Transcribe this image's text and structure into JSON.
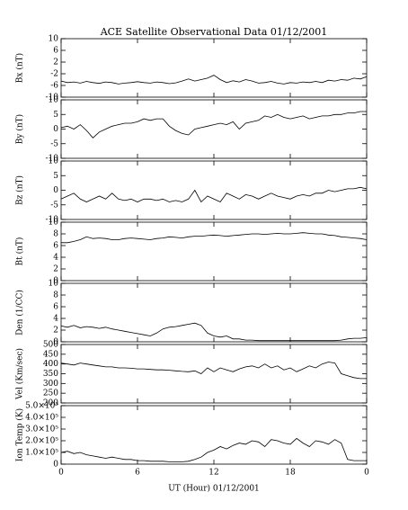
{
  "chart_data": [
    {
      "type": "line",
      "title": "ACE Satellite Observational Data   01/12/2001",
      "ylabel": "Bx (nT)",
      "ylim": [
        -10,
        10
      ],
      "yticks": [
        -10,
        -6,
        -2,
        2,
        6,
        10
      ],
      "xlim": [
        0,
        24
      ],
      "color": "#000000",
      "x": [
        0,
        0.5,
        1,
        1.5,
        2,
        2.5,
        3,
        3.5,
        4,
        4.5,
        5,
        5.5,
        6,
        6.5,
        7,
        7.5,
        8,
        8.5,
        9,
        9.5,
        10,
        10.5,
        11,
        11.5,
        12,
        12.5,
        13,
        13.5,
        14,
        14.5,
        15,
        15.5,
        16,
        16.5,
        17,
        17.5,
        18,
        18.5,
        19,
        19.5,
        20,
        20.5,
        21,
        21.5,
        22,
        22.5,
        23,
        23.5,
        24
      ],
      "values": [
        -4.5,
        -5,
        -4.8,
        -5.2,
        -4.6,
        -5,
        -5.3,
        -4.8,
        -5,
        -5.5,
        -5.2,
        -5,
        -4.7,
        -5,
        -5.2,
        -4.8,
        -5,
        -5.4,
        -5.1,
        -4.5,
        -3.8,
        -4.5,
        -4,
        -3.5,
        -2.5,
        -4,
        -5,
        -4.4,
        -4.8,
        -4,
        -4.5,
        -5.2,
        -5,
        -4.6,
        -5.2,
        -5.5,
        -5,
        -5.2,
        -4.8,
        -5,
        -4.6,
        -5,
        -4.2,
        -4.5,
        -4,
        -4.2,
        -3.5,
        -3.8,
        -3
      ]
    },
    {
      "type": "line",
      "ylabel": "By (nT)",
      "ylim": [
        -10,
        10
      ],
      "yticks": [
        -10,
        -5,
        0,
        5,
        10
      ],
      "xlim": [
        0,
        24
      ],
      "color": "#000000",
      "x": [
        0,
        0.5,
        1,
        1.5,
        2,
        2.5,
        3,
        3.5,
        4,
        4.5,
        5,
        5.5,
        6,
        6.5,
        7,
        7.5,
        8,
        8.5,
        9,
        9.5,
        10,
        10.5,
        11,
        11.5,
        12,
        12.5,
        13,
        13.5,
        14,
        14.5,
        15,
        15.5,
        16,
        16.5,
        17,
        17.5,
        18,
        18.5,
        19,
        19.5,
        20,
        20.5,
        21,
        21.5,
        22,
        22.5,
        23,
        23.5,
        24
      ],
      "values": [
        0.5,
        1,
        0,
        1.5,
        -0.5,
        -3,
        -1,
        0,
        1,
        1.5,
        2,
        2,
        2.5,
        3.5,
        3,
        3.5,
        3.5,
        1,
        -0.5,
        -1.5,
        -2,
        0,
        0.5,
        1,
        1.5,
        2,
        1.5,
        2.5,
        0,
        2,
        2.5,
        3,
        4.5,
        4,
        5,
        4,
        3.5,
        4,
        4.5,
        3.5,
        4,
        4.5,
        4.5,
        5,
        5,
        5.5,
        5.5,
        6,
        6
      ]
    },
    {
      "type": "line",
      "ylabel": "Bz (nT)",
      "ylim": [
        -10,
        10
      ],
      "yticks": [
        -10,
        -5,
        0,
        5,
        10
      ],
      "xlim": [
        0,
        24
      ],
      "color": "#000000",
      "x": [
        0,
        0.5,
        1,
        1.5,
        2,
        2.5,
        3,
        3.5,
        4,
        4.5,
        5,
        5.5,
        6,
        6.5,
        7,
        7.5,
        8,
        8.5,
        9,
        9.5,
        10,
        10.5,
        11,
        11.5,
        12,
        12.5,
        13,
        13.5,
        14,
        14.5,
        15,
        15.5,
        16,
        16.5,
        17,
        17.5,
        18,
        18.5,
        19,
        19.5,
        20,
        20.5,
        21,
        21.5,
        22,
        22.5,
        23,
        23.5,
        24
      ],
      "values": [
        -3,
        -2,
        -1,
        -3,
        -4,
        -3,
        -2,
        -3,
        -1,
        -3,
        -3.5,
        -3,
        -4,
        -3,
        -3,
        -3.5,
        -3,
        -4,
        -3.5,
        -4,
        -3,
        0,
        -4,
        -2,
        -3,
        -4,
        -1,
        -2,
        -3,
        -1.5,
        -2,
        -3,
        -2,
        -1,
        -2,
        -2.5,
        -3,
        -2,
        -1.5,
        -2,
        -1,
        -1,
        0,
        -0.5,
        0,
        0.5,
        0.5,
        1,
        0.5
      ]
    },
    {
      "type": "line",
      "ylabel": "Bt (nT)",
      "ylim": [
        0,
        10
      ],
      "yticks": [
        0,
        2,
        4,
        6,
        8,
        10
      ],
      "xlim": [
        0,
        24
      ],
      "color": "#000000",
      "x": [
        0,
        0.5,
        1,
        1.5,
        2,
        2.5,
        3,
        3.5,
        4,
        4.5,
        5,
        5.5,
        6,
        6.5,
        7,
        7.5,
        8,
        8.5,
        9,
        9.5,
        10,
        10.5,
        11,
        11.5,
        12,
        12.5,
        13,
        13.5,
        14,
        14.5,
        15,
        15.5,
        16,
        16.5,
        17,
        17.5,
        18,
        18.5,
        19,
        19.5,
        20,
        20.5,
        21,
        21.5,
        22,
        22.5,
        23,
        23.5,
        24
      ],
      "values": [
        6.5,
        6.5,
        6.7,
        7,
        7.5,
        7.2,
        7.3,
        7.2,
        7,
        7,
        7.2,
        7.3,
        7.2,
        7.1,
        7,
        7.2,
        7.3,
        7.5,
        7.4,
        7.3,
        7.5,
        7.6,
        7.6,
        7.7,
        7.8,
        7.7,
        7.6,
        7.7,
        7.8,
        7.9,
        8,
        8,
        7.9,
        8,
        8.1,
        8,
        8,
        8.1,
        8.2,
        8.1,
        8,
        8,
        7.8,
        7.7,
        7.5,
        7.4,
        7.3,
        7.2,
        7
      ]
    },
    {
      "type": "line",
      "ylabel": "Den (1/CC)",
      "ylim": [
        0,
        10
      ],
      "yticks": [
        0,
        2,
        4,
        6,
        8,
        10
      ],
      "xlim": [
        0,
        24
      ],
      "color": "#000000",
      "x": [
        0,
        0.5,
        1,
        1.5,
        2,
        2.5,
        3,
        3.5,
        4,
        4.5,
        5,
        5.5,
        6,
        6.5,
        7,
        7.5,
        8,
        8.5,
        9,
        9.5,
        10,
        10.5,
        11,
        11.5,
        12,
        12.5,
        13,
        13.5,
        14,
        14.5,
        15,
        15.5,
        16,
        16.5,
        17,
        17.5,
        18,
        18.5,
        19,
        19.5,
        20,
        20.5,
        21,
        21.5,
        22,
        22.5,
        23,
        23.5,
        24
      ],
      "values": [
        2.7,
        2.5,
        2.8,
        2.4,
        2.6,
        2.5,
        2.3,
        2.5,
        2.2,
        2,
        1.8,
        1.6,
        1.4,
        1.2,
        1,
        1.5,
        2.2,
        2.5,
        2.6,
        2.8,
        3,
        3.2,
        2.8,
        1.5,
        1,
        0.8,
        1,
        0.5,
        0.5,
        0.3,
        0.3,
        0.2,
        0.2,
        0.2,
        0.2,
        0.2,
        0.2,
        0.2,
        0.2,
        0.2,
        0.2,
        0.2,
        0.2,
        0.2,
        0.3,
        0.5,
        0.6,
        0.6,
        0.7
      ]
    },
    {
      "type": "line",
      "ylabel": "Vel (Km/sec)",
      "ylim": [
        200,
        500
      ],
      "yticks": [
        200,
        250,
        300,
        350,
        400,
        450,
        500
      ],
      "xlim": [
        0,
        24
      ],
      "color": "#000000",
      "x": [
        0,
        0.5,
        1,
        1.5,
        2,
        2.5,
        3,
        3.5,
        4,
        4.5,
        5,
        5.5,
        6,
        6.5,
        7,
        7.5,
        8,
        8.5,
        9,
        9.5,
        10,
        10.5,
        11,
        11.5,
        12,
        12.5,
        13,
        13.5,
        14,
        14.5,
        15,
        15.5,
        16,
        16.5,
        17,
        17.5,
        18,
        18.5,
        19,
        19.5,
        20,
        20.5,
        21,
        21.5,
        22,
        22.5,
        23,
        23.5,
        24
      ],
      "values": [
        405,
        400,
        395,
        405,
        400,
        395,
        390,
        385,
        385,
        380,
        380,
        378,
        375,
        375,
        372,
        370,
        370,
        368,
        365,
        362,
        360,
        365,
        350,
        380,
        360,
        380,
        370,
        360,
        375,
        385,
        390,
        380,
        400,
        380,
        390,
        370,
        380,
        360,
        375,
        390,
        380,
        400,
        410,
        405,
        350,
        340,
        330,
        325,
        325
      ]
    },
    {
      "type": "line",
      "ylabel": "Ion Temp (K)",
      "xlabel": "UT (Hour)  01/12/2001",
      "ylim": [
        0,
        500000
      ],
      "yticks": [
        0,
        {
          "value": 100000,
          "label": "1.0×10⁵"
        },
        {
          "value": 200000,
          "label": "2.0×10⁵"
        },
        {
          "value": 300000,
          "label": "3.0×10⁵"
        },
        {
          "value": 400000,
          "label": "4.0×10⁵"
        },
        {
          "value": 500000,
          "label": "5.0×10⁵"
        }
      ],
      "xlim": [
        0,
        24
      ],
      "xticks": [
        0,
        6,
        12,
        18,
        {
          "value": 24,
          "label": "0"
        }
      ],
      "color": "#000000",
      "x": [
        0,
        0.5,
        1,
        1.5,
        2,
        2.5,
        3,
        3.5,
        4,
        4.5,
        5,
        5.5,
        6,
        6.5,
        7,
        7.5,
        8,
        8.5,
        9,
        9.5,
        10,
        10.5,
        11,
        11.5,
        12,
        12.5,
        13,
        13.5,
        14,
        14.5,
        15,
        15.5,
        16,
        16.5,
        17,
        17.5,
        18,
        18.5,
        19,
        19.5,
        20,
        20.5,
        21,
        21.5,
        22,
        22.5,
        23,
        23.5,
        24
      ],
      "values": [
        100000,
        110000,
        90000,
        100000,
        80000,
        70000,
        60000,
        50000,
        60000,
        50000,
        40000,
        40000,
        30000,
        30000,
        25000,
        25000,
        25000,
        20000,
        20000,
        20000,
        25000,
        40000,
        60000,
        100000,
        120000,
        150000,
        130000,
        160000,
        180000,
        170000,
        200000,
        190000,
        150000,
        210000,
        200000,
        180000,
        170000,
        220000,
        180000,
        150000,
        200000,
        190000,
        170000,
        210000,
        180000,
        40000,
        30000,
        30000,
        30000
      ]
    }
  ]
}
